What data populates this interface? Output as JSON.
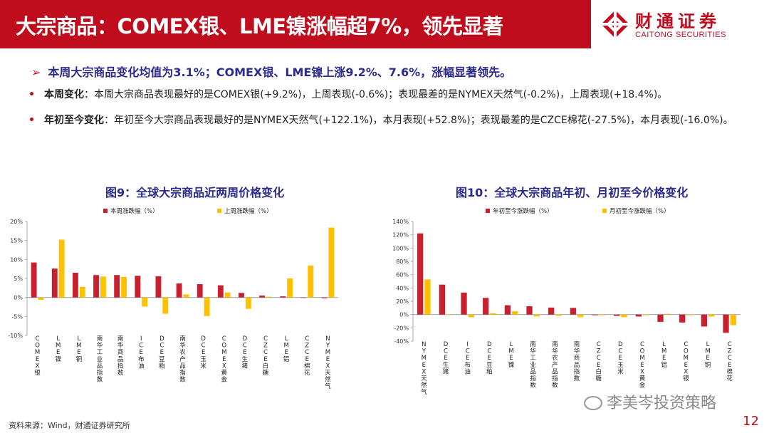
{
  "header": {
    "title": "大宗商品：COMEX银、LME镍涨幅超7%，领先显著",
    "logo_cn": "财通证券",
    "logo_en": "CAITONG SECURITIES"
  },
  "summary": "本周大宗商品变化均值为3.1%；COMEX银、LME镍上涨9.2%、7.6%，涨幅显著领先。",
  "bullets": [
    {
      "lead": "本周变化",
      "text": "：本周大宗商品表现最好的是COMEX银(+9.2%)，上周表现(-0.6%)；表现最差的是NYMEX天然气(-0.2%)，上周表现(+18.4%)。"
    },
    {
      "lead": "年初至今变化",
      "text": "：年初至今大宗商品表现最好的是NYMEX天然气(+122.1%)，本月表现(+52.8%)；表现最差的是CZCE棉花(-27.5%)，本月表现(-16.0%)。"
    }
  ],
  "chart_data": [
    {
      "type": "bar",
      "title": "图9：全球大宗商品近两周价格变化",
      "categories": [
        "COMEX银",
        "LME镍",
        "LME铜",
        "南华工业品指数",
        "南华商品指数",
        "ICE布油",
        "DCE豆粕",
        "南华农产品指数",
        "DCE玉米",
        "COMEX黄金",
        "DCE生猪",
        "CZCE白糖",
        "LME铝",
        "CZCE棉花",
        "NYMEX天然气"
      ],
      "series": [
        {
          "name": "本周涨跌幅（%）",
          "color": "#c8202f",
          "values": [
            9.2,
            7.6,
            6.5,
            5.9,
            5.9,
            5.7,
            5.6,
            3.7,
            3.5,
            3.2,
            1.2,
            0.5,
            0.3,
            -0.1,
            -0.2
          ]
        },
        {
          "name": "上周涨跌幅（%）",
          "color": "#ffc000",
          "values": [
            -0.6,
            15.2,
            2.8,
            5.5,
            5.4,
            -2.4,
            -4.3,
            0.8,
            -4.9,
            1.3,
            -3.0,
            0.2,
            5.0,
            8.4,
            18.4
          ]
        }
      ],
      "ylim": [
        -10,
        20
      ],
      "yticks": [
        "-10%",
        "-5%",
        "0%",
        "5%",
        "10%",
        "15%",
        "20%"
      ],
      "legend": "top"
    },
    {
      "type": "bar",
      "title": "图10：全球大宗商品年初、月初至今价格变化",
      "categories": [
        "NYMEX天然气",
        "DCE生猪",
        "ICE布油",
        "DCE豆粕",
        "LME镍",
        "南华工业品指数",
        "南华农产品指数",
        "南华商品指数",
        "CZCE白糖",
        "DCE玉米",
        "COMEX黄金",
        "LME铝",
        "COMEX银",
        "LME铜",
        "CZCE棉花"
      ],
      "series": [
        {
          "name": "年初至今涨跌幅（%）",
          "color": "#c8202f",
          "values": [
            122.1,
            45.0,
            33.0,
            25.0,
            14.0,
            12.5,
            10.5,
            10.0,
            -1.0,
            -2.0,
            -3.0,
            -11.0,
            -12.0,
            -18.0,
            -27.5
          ]
        },
        {
          "name": "月初至今涨跌幅（%）",
          "color": "#ffc000",
          "values": [
            52.8,
            0.0,
            -4.0,
            2.0,
            5.0,
            -3.0,
            -2.0,
            -4.0,
            -1.0,
            -4.0,
            -1.0,
            1.0,
            -1.0,
            -3.0,
            -16.0
          ]
        }
      ],
      "ylim": [
        -40,
        140
      ],
      "yticks": [
        "-40%",
        "-20%",
        "0%",
        "20%",
        "40%",
        "60%",
        "80%",
        "100%",
        "120%",
        "140%"
      ],
      "legend": "top"
    }
  ],
  "source": "资料来源：Wind，财通证券研究所",
  "watermark": "李美岑投资策略",
  "page_number": "12"
}
